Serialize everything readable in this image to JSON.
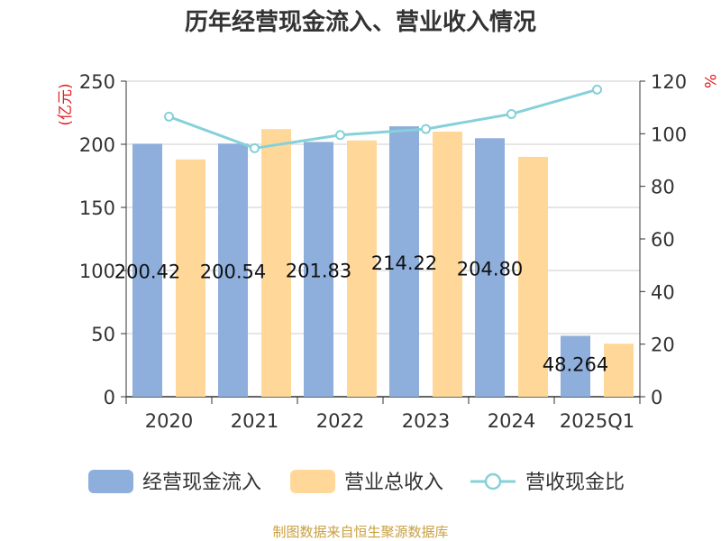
{
  "chart_data": {
    "type": "bar",
    "title": "历年经营现金流入、营业收入情况",
    "categories": [
      "2020",
      "2021",
      "2022",
      "2023",
      "2024",
      "2025Q1"
    ],
    "series": [
      {
        "name": "经营现金流入",
        "type": "bar",
        "axis": "left",
        "color": "#8eaedb",
        "values": [
          200.42,
          200.54,
          201.83,
          214.22,
          204.8,
          48.264
        ],
        "labels": [
          "200.42",
          "200.54",
          "201.83",
          "214.22",
          "204.80",
          "48.264"
        ]
      },
      {
        "name": "营业总收入",
        "type": "bar",
        "axis": "left",
        "color": "#ffd899",
        "values": [
          188,
          212,
          203,
          210,
          190,
          42
        ]
      },
      {
        "name": "营收现金比",
        "type": "line",
        "axis": "right",
        "color": "#86d1d9",
        "values": [
          106.5,
          94.5,
          99.5,
          101.8,
          107.5,
          116.8
        ]
      }
    ],
    "ylabel_left": "(亿元)",
    "ylabel_right": "%",
    "ylim_left": [
      0,
      250
    ],
    "yticks_left": [
      "0",
      "50",
      "100",
      "150",
      "200",
      "250"
    ],
    "ylim_right": [
      0,
      120
    ],
    "yticks_right": [
      "0",
      "20",
      "40",
      "60",
      "80",
      "100",
      "120"
    ],
    "grid": true,
    "legend_position": "bottom",
    "axis_unit_color": "#e02020",
    "source": "制图数据来自恒生聚源数据库",
    "source_color": "#c8a040"
  }
}
